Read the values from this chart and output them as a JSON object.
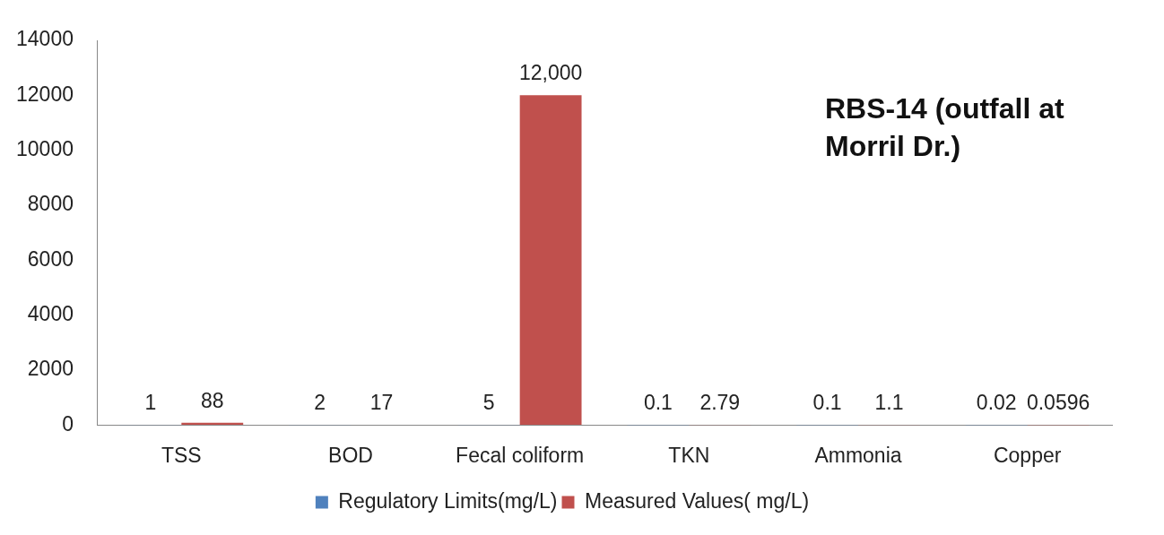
{
  "chart_data": {
    "type": "bar",
    "title": "RBS-14 (outfall at Morril Dr.)",
    "categories": [
      "TSS",
      "BOD",
      "Fecal coliform",
      "TKN",
      "Ammonia",
      "Copper"
    ],
    "series": [
      {
        "name": "Regulatory Limits(mg/L)",
        "color": "#4f81bd",
        "values": [
          1,
          2,
          5,
          0.1,
          0.1,
          0.02
        ],
        "value_labels": [
          "1",
          "2",
          "5",
          "0.1",
          "0.1",
          "0.02"
        ]
      },
      {
        "name": "Measured Values( mg/L)",
        "color": "#c0504d",
        "values": [
          88,
          17,
          12000,
          2.79,
          1.1,
          0.0596
        ],
        "value_labels": [
          "88",
          "17",
          "12,000",
          "2.79",
          "1.1",
          "0.0596"
        ]
      }
    ],
    "ylim": [
      0,
      14000
    ],
    "yticks": [
      0,
      2000,
      4000,
      6000,
      8000,
      10000,
      12000,
      14000
    ],
    "legend": "bottom",
    "grid": false
  }
}
